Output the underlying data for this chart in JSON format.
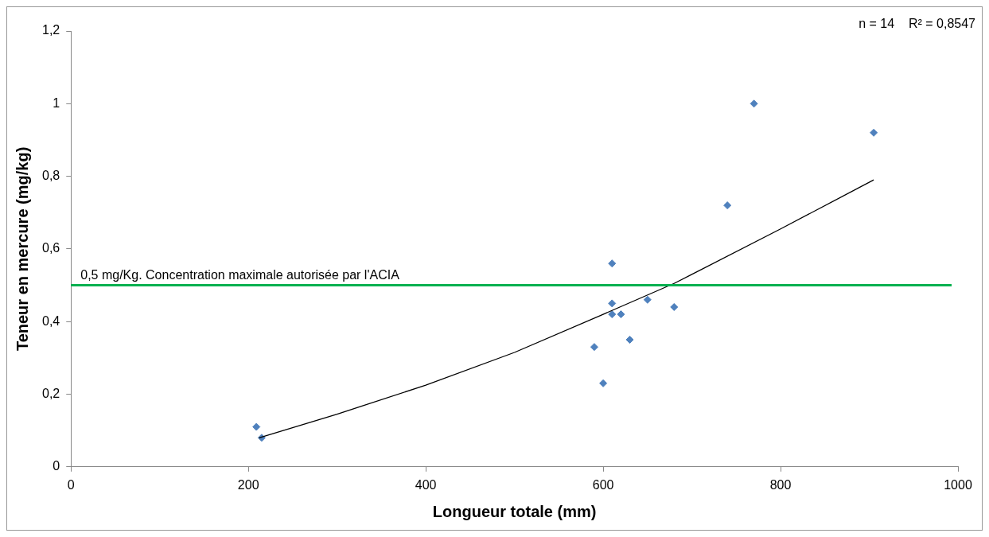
{
  "chart_data": {
    "type": "scatter",
    "xlabel": "Longueur totale (mm)",
    "ylabel": "Teneur en mercure (mg/kg)",
    "xlim": [
      0,
      1000
    ],
    "xticks": [
      0,
      200,
      400,
      600,
      800,
      1000
    ],
    "ylim": [
      0,
      1.2
    ],
    "yticks": [
      0,
      {
        "value": 0.2,
        "label": "0,2"
      },
      {
        "value": 0.4,
        "label": "0,4"
      },
      {
        "value": 0.6,
        "label": "0,6"
      },
      {
        "value": 0.8,
        "label": "0,8"
      },
      1,
      {
        "value": 1.2,
        "label": "1,2"
      }
    ],
    "grid": false,
    "legend": false,
    "series": [
      {
        "color": "#4f81bd",
        "marker": "diamond",
        "x": [
          209,
          215,
          590,
          600,
          610,
          610,
          610,
          620,
          630,
          650,
          680,
          740,
          770,
          905
        ],
        "values": [
          0.11,
          0.08,
          0.33,
          0.23,
          0.56,
          0.45,
          0.42,
          0.42,
          0.35,
          0.46,
          0.44,
          0.72,
          1.0,
          0.92
        ]
      },
      {
        "type": "line",
        "color": "#000000",
        "marker": "none",
        "x": [
          212,
          300,
          400,
          500,
          600,
          680,
          700,
          800,
          905
        ],
        "values": [
          0.08,
          0.145,
          0.225,
          0.315,
          0.42,
          0.505,
          0.53,
          0.655,
          0.79
        ]
      }
    ],
    "ref_lines": [
      {
        "axis": "y",
        "value": 0.5,
        "label": "0,5 mg/Kg. Concentration maximale autorisée par l'ACIA",
        "color": "#00b050"
      }
    ],
    "annotations": [
      "n = 14    R² = 0,8547"
    ]
  }
}
